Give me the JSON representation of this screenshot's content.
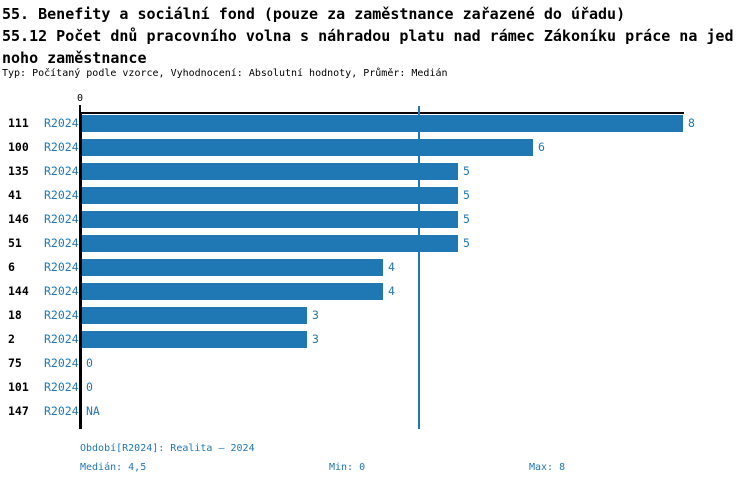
{
  "header": {
    "line1": "55. Benefity a sociální fond (pouze za zaměstnance zařazené do úřadu)",
    "line2": "55.12 Počet dnů pracovního volna s náhradou platu nad rámec Zákoníku práce na jed",
    "line3": "noho zaměstnance",
    "meta": "Typ: Počítaný podle vzorce, Vyhodnocení: Absolutní hodnoty, Průměr: Medián"
  },
  "chart_data": {
    "type": "bar",
    "orientation": "horizontal",
    "title": "55.12 Počet dnů pracovního volna s náhradou platu nad rámec Zákoníku práce na jednoho zaměstnance",
    "categories": [
      "111",
      "100",
      "135",
      "41",
      "146",
      "51",
      "6",
      "144",
      "18",
      "2",
      "75",
      "101",
      "147"
    ],
    "series": [
      {
        "name": "R2024",
        "values": [
          8,
          6,
          5,
          5,
          5,
          5,
          4,
          4,
          3,
          3,
          0,
          0,
          null
        ]
      }
    ],
    "value_labels": [
      "8",
      "6",
      "5",
      "5",
      "5",
      "5",
      "4",
      "4",
      "3",
      "3",
      "0",
      "0",
      "NA"
    ],
    "xlim": [
      0,
      8
    ],
    "x_tick_labels": [
      "0"
    ],
    "median_line_value": 4.5,
    "grid": false,
    "legend": false,
    "bar_color": "#1f77b4",
    "label_color": "#1f77b4",
    "axis_color": "#000000"
  },
  "footer": {
    "period_label": "Období[R2024]: Realita – 2024",
    "median_label": "Medián: 4,5",
    "min_label": "Min: 0",
    "max_label": "Max: 8"
  }
}
